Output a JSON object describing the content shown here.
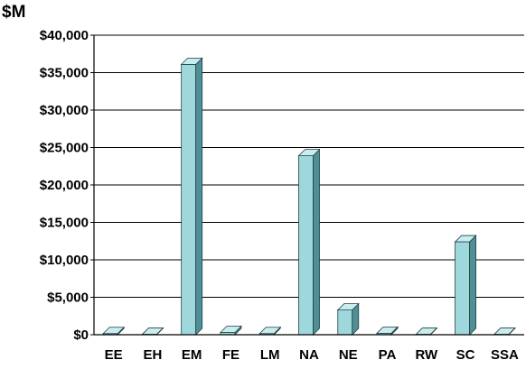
{
  "chart_data": {
    "type": "bar",
    "unit_label": "$M",
    "categories": [
      "EE",
      "EH",
      "EM",
      "FE",
      "LM",
      "NA",
      "NE",
      "PA",
      "RW",
      "SC",
      "SSA"
    ],
    "values": [
      150,
      50,
      36100,
      300,
      150,
      23900,
      3300,
      200,
      50,
      12400,
      50
    ],
    "ylim": [
      0,
      40000
    ],
    "yticks": [
      0,
      5000,
      10000,
      15000,
      20000,
      25000,
      30000,
      35000,
      40000
    ],
    "ytick_labels": [
      "$0",
      "$5,000",
      "$10,000",
      "$15,000",
      "$20,000",
      "$25,000",
      "$30,000",
      "$35,000",
      "$40,000"
    ],
    "grid": true,
    "legend": false,
    "colors": {
      "bar_front": "#9fd8dc",
      "bar_side": "#4f8f95",
      "bar_top": "#c9ecef",
      "bar_outline": "#1f3f42",
      "grid": "#000000",
      "axis": "#000000"
    }
  }
}
